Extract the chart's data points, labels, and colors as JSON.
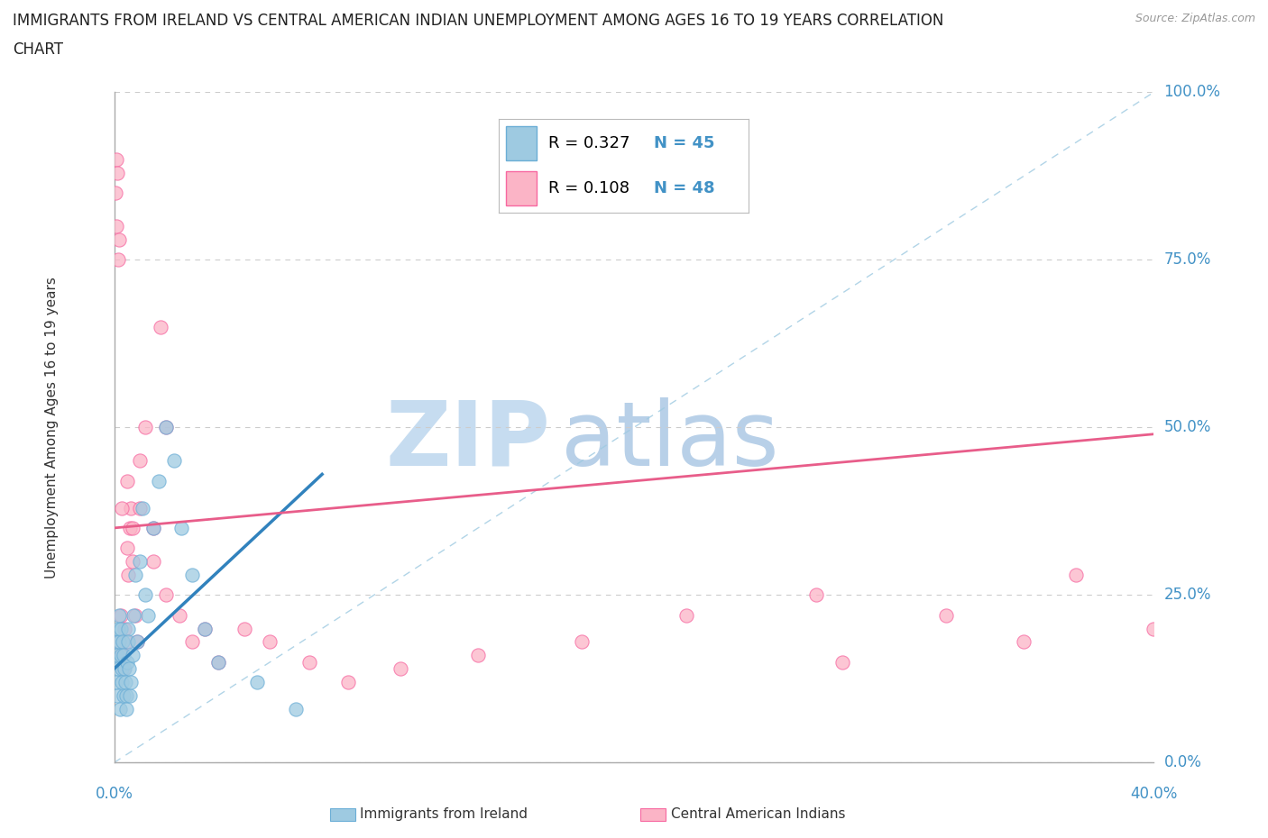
{
  "title_line1": "IMMIGRANTS FROM IRELAND VS CENTRAL AMERICAN INDIAN UNEMPLOYMENT AMONG AGES 16 TO 19 YEARS CORRELATION",
  "title_line2": "CHART",
  "source": "Source: ZipAtlas.com",
  "ylabel": "Unemployment Among Ages 16 to 19 years",
  "ytick_labels": [
    "0.0%",
    "25.0%",
    "50.0%",
    "75.0%",
    "100.0%"
  ],
  "ytick_values": [
    0,
    25,
    50,
    75,
    100
  ],
  "xtick_left": "0.0%",
  "xtick_right": "40.0%",
  "xlim": [
    0,
    40
  ],
  "ylim": [
    0,
    100
  ],
  "R1": "0.327",
  "N1": "45",
  "R2": "0.108",
  "N2": "48",
  "color_blue_fill": "#9ecae1",
  "color_blue_edge": "#6baed6",
  "color_blue_line": "#3182bd",
  "color_pink_fill": "#fbb4c6",
  "color_pink_edge": "#f768a1",
  "color_pink_line": "#e85d8a",
  "color_diag": "#9ecae1",
  "color_grid": "#cccccc",
  "color_axis_label": "#4292c6",
  "watermark_zip": "#c6dcf0",
  "watermark_atlas": "#b8d0e8",
  "legend_label1": "Immigrants from Ireland",
  "legend_label2": "Central American Indians",
  "blue_x": [
    0.05,
    0.08,
    0.1,
    0.12,
    0.13,
    0.15,
    0.15,
    0.18,
    0.2,
    0.22,
    0.25,
    0.25,
    0.28,
    0.3,
    0.32,
    0.35,
    0.38,
    0.4,
    0.42,
    0.45,
    0.48,
    0.5,
    0.52,
    0.55,
    0.58,
    0.6,
    0.65,
    0.7,
    0.75,
    0.8,
    0.9,
    1.0,
    1.1,
    1.2,
    1.3,
    1.5,
    1.7,
    2.0,
    2.3,
    2.6,
    3.0,
    3.5,
    4.0,
    5.5,
    7.0
  ],
  "blue_y": [
    15,
    12,
    18,
    10,
    16,
    14,
    20,
    18,
    22,
    8,
    20,
    16,
    14,
    12,
    18,
    10,
    16,
    14,
    12,
    10,
    8,
    15,
    20,
    18,
    14,
    10,
    12,
    16,
    22,
    28,
    18,
    30,
    38,
    25,
    22,
    35,
    42,
    50,
    45,
    35,
    28,
    20,
    15,
    12,
    8
  ],
  "pink_x": [
    0.05,
    0.08,
    0.1,
    0.12,
    0.15,
    0.18,
    0.2,
    0.25,
    0.3,
    0.35,
    0.4,
    0.45,
    0.5,
    0.55,
    0.6,
    0.65,
    0.7,
    0.8,
    0.9,
    1.0,
    1.2,
    1.5,
    1.8,
    2.0,
    2.5,
    3.0,
    4.0,
    5.0,
    6.0,
    7.5,
    9.0,
    11.0,
    14.0,
    18.0,
    22.0,
    27.0,
    32.0,
    37.0,
    40.0,
    0.3,
    0.5,
    0.7,
    1.0,
    1.5,
    2.0,
    3.5,
    28.0,
    35.0
  ],
  "pink_y": [
    85,
    90,
    80,
    88,
    75,
    78,
    18,
    22,
    16,
    14,
    20,
    18,
    32,
    28,
    35,
    38,
    30,
    22,
    18,
    45,
    50,
    35,
    65,
    50,
    22,
    18,
    15,
    20,
    18,
    15,
    12,
    14,
    16,
    18,
    22,
    25,
    22,
    28,
    20,
    38,
    42,
    35,
    38,
    30,
    25,
    20,
    15,
    18
  ],
  "blue_trend_x0": 0,
  "blue_trend_y0": 14,
  "blue_trend_x1": 8,
  "blue_trend_y1": 43,
  "pink_trend_x0": 0,
  "pink_trend_y0": 35,
  "pink_trend_x1": 40,
  "pink_trend_y1": 49
}
